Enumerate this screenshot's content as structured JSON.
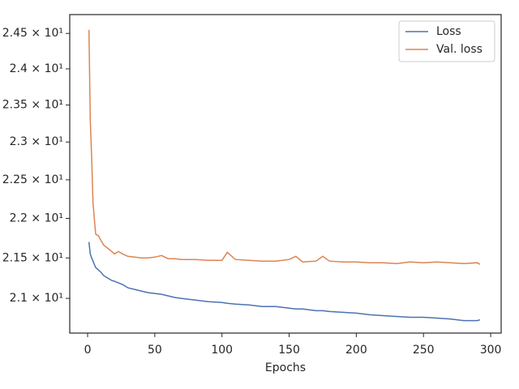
{
  "chart_data": {
    "type": "line",
    "xlabel": "Epochs",
    "x": [
      1,
      2,
      3,
      4,
      5,
      6,
      8,
      10,
      12,
      15,
      18,
      20,
      23,
      26,
      30,
      35,
      40,
      45,
      50,
      55,
      60,
      65,
      70,
      80,
      90,
      100,
      104,
      110,
      120,
      130,
      140,
      150,
      155,
      160,
      170,
      175,
      180,
      190,
      200,
      210,
      220,
      230,
      240,
      250,
      260,
      270,
      280,
      290,
      292
    ],
    "series": [
      {
        "name": "Loss",
        "color": "#4c72b0",
        "values": [
          21.7,
          21.55,
          21.5,
          21.46,
          21.42,
          21.38,
          21.35,
          21.32,
          21.28,
          21.25,
          21.22,
          21.21,
          21.19,
          21.17,
          21.13,
          21.11,
          21.09,
          21.07,
          21.06,
          21.05,
          21.03,
          21.01,
          21.0,
          20.98,
          20.96,
          20.95,
          20.94,
          20.93,
          20.92,
          20.9,
          20.9,
          20.88,
          20.87,
          20.87,
          20.85,
          20.85,
          20.84,
          20.83,
          20.82,
          20.8,
          20.79,
          20.78,
          20.77,
          20.77,
          20.76,
          20.75,
          20.73,
          20.73,
          20.74
        ]
      },
      {
        "name": "Val. loss",
        "color": "#dd8452",
        "values": [
          24.55,
          23.3,
          22.8,
          22.2,
          22.0,
          21.8,
          21.78,
          21.72,
          21.66,
          21.62,
          21.58,
          21.55,
          21.58,
          21.55,
          21.52,
          21.51,
          21.5,
          21.5,
          21.51,
          21.53,
          21.49,
          21.49,
          21.48,
          21.48,
          21.47,
          21.47,
          21.57,
          21.48,
          21.47,
          21.46,
          21.46,
          21.48,
          21.52,
          21.45,
          21.46,
          21.52,
          21.46,
          21.45,
          21.45,
          21.44,
          21.44,
          21.43,
          21.45,
          21.44,
          21.45,
          21.44,
          21.43,
          21.44,
          21.42
        ]
      }
    ],
    "xlim": [
      -13.3,
      307.8
    ],
    "xticks": [
      0,
      50,
      100,
      150,
      200,
      250,
      300
    ],
    "ylim": [
      20.58,
      24.77
    ],
    "yscale": "log",
    "yticks": [
      {
        "value": 21,
        "label": "2.1 × 10¹"
      },
      {
        "value": 21.5,
        "label": "2.15 × 10¹"
      },
      {
        "value": 22,
        "label": "2.2 × 10¹"
      },
      {
        "value": 22.5,
        "label": "2.25 × 10¹"
      },
      {
        "value": 23,
        "label": "2.3 × 10¹"
      },
      {
        "value": 23.5,
        "label": "2.35 × 10¹"
      },
      {
        "value": 24,
        "label": "2.4 × 10¹"
      },
      {
        "value": 24.5,
        "label": "2.45 × 10¹"
      }
    ],
    "legend": "upper right"
  }
}
